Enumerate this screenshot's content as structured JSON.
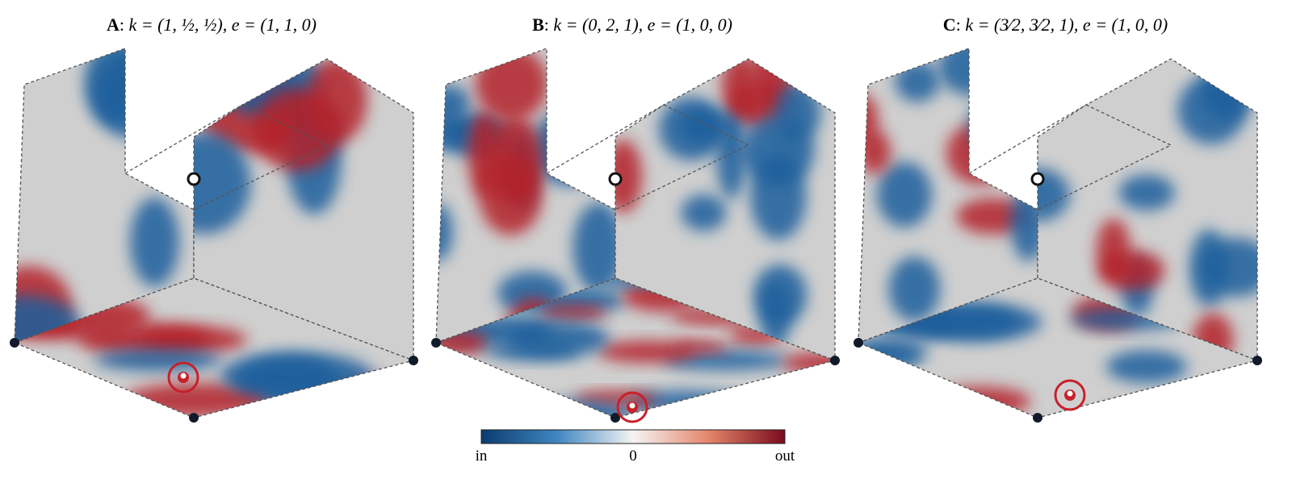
{
  "panels": [
    {
      "label": "A",
      "formula": "k = (1, ½, ½), e = (1, 1, 0)"
    },
    {
      "label": "B",
      "formula": "k = (0, 2, 1), e = (1, 0, 0)"
    },
    {
      "label": "C",
      "formula": "k = (3⁄2, 3⁄2, 1), e = (1, 0, 0)"
    }
  ],
  "colorbar": {
    "min_label": "in",
    "mid_label": "0",
    "max_label": "out"
  }
}
